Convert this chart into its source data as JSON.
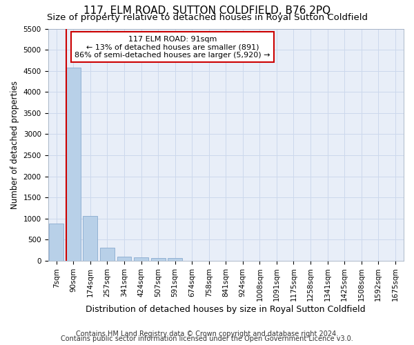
{
  "title": "117, ELM ROAD, SUTTON COLDFIELD, B76 2PQ",
  "subtitle": "Size of property relative to detached houses in Royal Sutton Coldfield",
  "xlabel": "Distribution of detached houses by size in Royal Sutton Coldfield",
  "ylabel": "Number of detached properties",
  "footnote1": "Contains HM Land Registry data © Crown copyright and database right 2024.",
  "footnote2": "Contains public sector information licensed under the Open Government Licence v3.0.",
  "annotation_line1": "117 ELM ROAD: 91sqm",
  "annotation_line2": "← 13% of detached houses are smaller (891)",
  "annotation_line3": "86% of semi-detached houses are larger (5,920) →",
  "bar_labels": [
    "7sqm",
    "90sqm",
    "174sqm",
    "257sqm",
    "341sqm",
    "424sqm",
    "507sqm",
    "591sqm",
    "674sqm",
    "758sqm",
    "841sqm",
    "924sqm",
    "1008sqm",
    "1091sqm",
    "1175sqm",
    "1258sqm",
    "1341sqm",
    "1425sqm",
    "1508sqm",
    "1592sqm",
    "1675sqm"
  ],
  "bar_values": [
    880,
    4580,
    1060,
    305,
    95,
    75,
    60,
    60,
    0,
    0,
    0,
    0,
    0,
    0,
    0,
    0,
    0,
    0,
    0,
    0,
    0
  ],
  "bar_color": "#b8d0e8",
  "bar_edge_color": "#88aace",
  "highlight_bar_index": 1,
  "highlight_line_color": "#cc0000",
  "grid_color": "#ccd8ec",
  "bg_color": "#e8eef8",
  "ylim": [
    0,
    5500
  ],
  "yticks": [
    0,
    500,
    1000,
    1500,
    2000,
    2500,
    3000,
    3500,
    4000,
    4500,
    5000,
    5500
  ],
  "title_fontsize": 11,
  "subtitle_fontsize": 9.5,
  "xlabel_fontsize": 9,
  "ylabel_fontsize": 8.5,
  "tick_fontsize": 7.5,
  "annotation_fontsize": 8,
  "footnote_fontsize": 7
}
